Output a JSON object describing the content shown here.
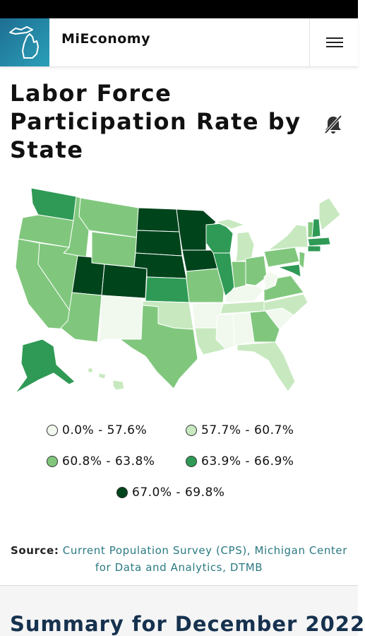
{
  "header": {
    "app_name": "MiEconomy",
    "logo_icon": "michigan-outline-icon",
    "menu_icon": "hamburger-menu-icon"
  },
  "page": {
    "title": "Labor Force Participation Rate by State",
    "alert_icon": "bell-off-icon"
  },
  "map": {
    "colors": {
      "bin1": "#f1f9ee",
      "bin2": "#c8e9c0",
      "bin3": "#80c77d",
      "bin4": "#2f9a55",
      "bin5": "#00441b"
    },
    "legend": [
      {
        "label": "0.0% - 57.6%",
        "color": "#f1f9ee"
      },
      {
        "label": "57.7% - 60.7%",
        "color": "#c8e9c0"
      },
      {
        "label": "60.8% - 63.8%",
        "color": "#80c77d"
      },
      {
        "label": "63.9% - 66.9%",
        "color": "#2f9a55"
      },
      {
        "label": "67.0% - 69.8%",
        "color": "#00441b"
      }
    ]
  },
  "source": {
    "label": "Source:",
    "link_text": "Current Population Survey (CPS), Michigan Center for Data and Analytics, DTMB"
  },
  "summary": {
    "title": "Summary for December 2022"
  }
}
